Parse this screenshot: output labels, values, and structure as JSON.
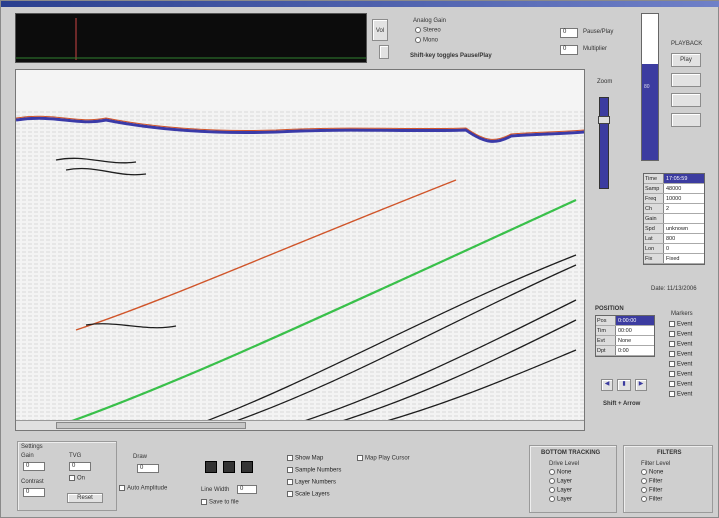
{
  "top_bar": {
    "oscilloscope": "dark trace display",
    "analog_gain_label": "Analog Gain",
    "radio_stereo": "Stereo",
    "radio_mono": "Mono",
    "gain_hint": "Shift-key toggles Pause/Play",
    "field_top": "0",
    "field_top_label": "Pause/Play",
    "field_bottom": "0",
    "field_bottom_label": "Multiplier",
    "vol_label": "Vol"
  },
  "right_panel": {
    "playback_label": "PLAYBACK",
    "play_label": "Play",
    "level_value": "80",
    "zoom_label": "Zoom",
    "info_rows": [
      {
        "k": "Time",
        "v": "17:05:59"
      },
      {
        "k": "Samp",
        "v": "48000"
      },
      {
        "k": "Freq",
        "v": "10000"
      },
      {
        "k": "Ch",
        "v": "2"
      },
      {
        "k": "Gain",
        "v": ""
      },
      {
        "k": "Spd",
        "v": "unknown"
      },
      {
        "k": "Lat",
        "v": "800"
      },
      {
        "k": "Lon",
        "v": "0"
      },
      {
        "k": "Fix",
        "v": "Fixed"
      }
    ],
    "date_text": "Date: 11/13/2006",
    "position_label": "POSITION",
    "position_rows": [
      {
        "k": "Pos",
        "v": "0:00:00"
      },
      {
        "k": "Tim",
        "v": "00:00"
      },
      {
        "k": "Evt",
        "v": "None"
      },
      {
        "k": "Dpt",
        "v": "0:00"
      }
    ],
    "shift_hint": "Shift + Arrow",
    "markers_label": "Markers",
    "markers": [
      "Event",
      "Event",
      "Event",
      "Event",
      "Event",
      "Event",
      "Event",
      "Event"
    ]
  },
  "bottom": {
    "settings_label": "Settings",
    "gain_label": "Gain",
    "gain_value": "0",
    "contrast_label": "Contrast",
    "contrast_value": "0",
    "tvg_label": "TVG",
    "tvg_value": "0",
    "on_label": "On",
    "reset_label": "Reset",
    "draw_label": "Draw",
    "draw_value": "0",
    "auto_label": "Auto Amplitude",
    "line_width_label": "Line Width",
    "line_width_value": "0",
    "save_label": "Save to file",
    "checks": [
      "Show Map",
      "Sample Numbers",
      "Layer Numbers",
      "Scale Layers"
    ],
    "map_check": "Map Play Cursor",
    "bottom_tracking_label": "BOTTOM TRACKING",
    "bt_sub": "Drive Level",
    "bt_opts": [
      "None",
      "Layer",
      "Layer",
      "Layer"
    ],
    "filters_label": "FILTERS",
    "f_sub": "Filter Level",
    "f_opts": [
      "None",
      "Filter",
      "Filter",
      "Filter"
    ]
  },
  "colors": {
    "accent": "#3c3ca0",
    "orange_horizon": "#d0552a",
    "green_horizon": "#39c04a",
    "seafloor": "#3a3aa8"
  }
}
